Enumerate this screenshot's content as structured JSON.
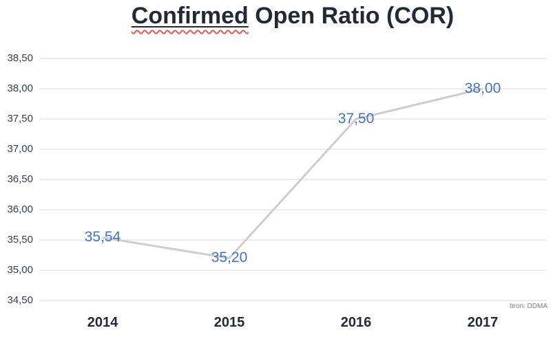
{
  "title": {
    "misspelled_word": "Confirmed",
    "rest": " Open Ratio (COR)"
  },
  "source_note": "bron: DDMA",
  "colors": {
    "title_text": "#222A35",
    "axis_text": "#333B49",
    "gridline": "#D7DBE3",
    "series_line": "#CDCDCD",
    "data_label_blue": "#4472C4",
    "squiggle_red": "#E2574F",
    "source_text": "#7F7F7F"
  },
  "chart_data": {
    "type": "line",
    "title": "Confirmed Open Ratio (COR)",
    "categories": [
      "2014",
      "2015",
      "2016",
      "2017"
    ],
    "values": [
      35.54,
      35.2,
      37.5,
      38.0
    ],
    "value_labels": [
      "35,54",
      "35,20",
      "37,50",
      "38,00"
    ],
    "y_tick_values": [
      38.5,
      38.0,
      37.5,
      37.0,
      36.5,
      36.0,
      35.5,
      35.0,
      34.5
    ],
    "y_tick_labels": [
      "38,50",
      "38,00",
      "37,50",
      "37,00",
      "36,50",
      "36,00",
      "35,50",
      "35,00",
      "34,50"
    ],
    "ylim": [
      34.5,
      38.5
    ],
    "xlabel": "",
    "ylabel": "",
    "grid": true,
    "legend": false,
    "decimal_separator": ","
  }
}
